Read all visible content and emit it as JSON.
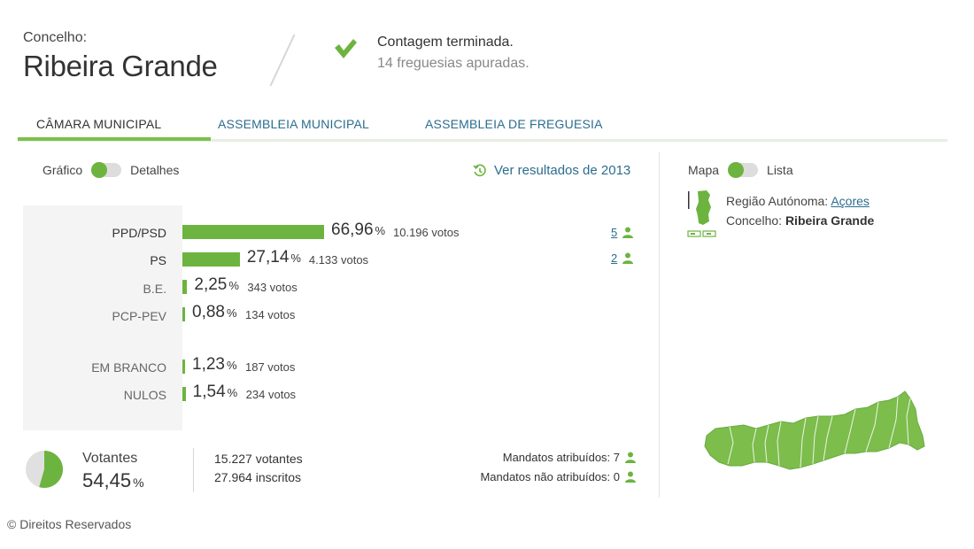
{
  "header": {
    "label": "Concelho:",
    "name": "Ribeira Grande",
    "status_title": "Contagem terminada.",
    "status_sub": "14 freguesias apuradas."
  },
  "tabs": [
    {
      "label": "CÂMARA MUNICIPAL",
      "active": true
    },
    {
      "label": "ASSEMBLEIA MUNICIPAL",
      "active": false
    },
    {
      "label": "ASSEMBLEIA DE FREGUESIA",
      "active": false
    }
  ],
  "view_toggle": {
    "left": "Gráfico",
    "right": "Detalhes",
    "state": "Gráfico"
  },
  "history_link": "Ver resultados de 2013",
  "results": [
    {
      "party": "PPD/PSD",
      "pct": "66,96",
      "votes": "10.196 votos",
      "seats": "5",
      "share": 66.96
    },
    {
      "party": "PS",
      "pct": "27,14",
      "votes": "4.133 votos",
      "seats": "2",
      "share": 27.14
    },
    {
      "party": "B.E.",
      "pct": "2,25",
      "votes": "343 votos",
      "seats": "",
      "share": 2.25
    },
    {
      "party": "PCP-PEV",
      "pct": "0,88",
      "votes": "134 votos",
      "seats": "",
      "share": 0.88
    },
    {
      "party": "EM BRANCO",
      "pct": "1,23",
      "votes": "187 votos",
      "seats": "",
      "share": 1.23
    },
    {
      "party": "NULOS",
      "pct": "1,54",
      "votes": "234 votos",
      "seats": "",
      "share": 1.54
    }
  ],
  "pct_unit": "%",
  "turnout": {
    "label": "Votantes",
    "pct": "54,45",
    "share": 54.45,
    "voters": "15.227 votantes",
    "registered": "27.964 inscritos",
    "mandates_assigned": "Mandatos atribuídos: 7",
    "mandates_unassigned": "Mandatos não atribuídos: 0"
  },
  "map_toggle": {
    "left": "Mapa",
    "right": "Lista",
    "state": "Mapa"
  },
  "map": {
    "region_label": "Região Autónoma:",
    "region_value": "Açores",
    "council_label": "Concelho:",
    "council_value": "Ribeira Grande"
  },
  "credit": "© Direitos Reservados",
  "colors": {
    "accent": "#6cb43f",
    "link": "#2c6d8e"
  }
}
